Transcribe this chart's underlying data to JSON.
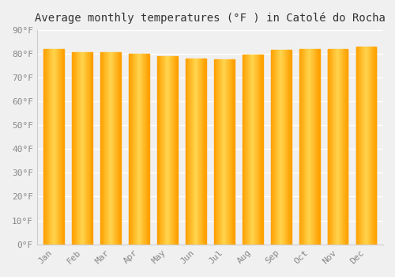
{
  "title": "Average monthly temperatures (°F ) in Catolé do Rocha",
  "months": [
    "Jan",
    "Feb",
    "Mar",
    "Apr",
    "May",
    "Jun",
    "Jul",
    "Aug",
    "Sep",
    "Oct",
    "Nov",
    "Dec"
  ],
  "values": [
    82,
    80.5,
    80.5,
    80,
    79,
    78,
    77.5,
    79.5,
    81.5,
    82,
    82,
    83
  ],
  "bar_color_center": "#FFD54F",
  "bar_color_edge": "#FFA000",
  "ylim": [
    0,
    90
  ],
  "yticks": [
    0,
    10,
    20,
    30,
    40,
    50,
    60,
    70,
    80,
    90
  ],
  "background_color": "#f0f0f0",
  "grid_color": "#ffffff",
  "title_fontsize": 10,
  "tick_fontsize": 8,
  "bar_width": 0.72
}
